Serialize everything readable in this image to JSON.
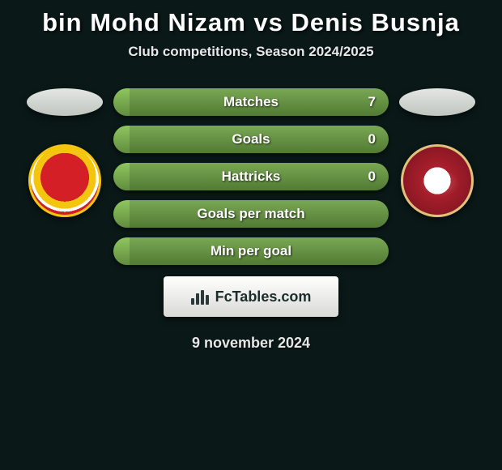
{
  "header": {
    "title": "bin Mohd Nizam vs Denis Busnja",
    "subtitle": "Club competitions, Season 2024/2025"
  },
  "bar_style": {
    "height": 34,
    "radius": 17,
    "bg_gradient": [
      "#7aa854",
      "#517a33"
    ],
    "fill_gradient": [
      "#8fc65f",
      "#618c3e"
    ],
    "label_fontsize": 17,
    "label_color": "#ffffff",
    "shadow": "0 3px 6px rgba(0,0,0,0.5)"
  },
  "bars": [
    {
      "label": "Matches",
      "left": "",
      "right": "7",
      "fill_pct": 6
    },
    {
      "label": "Goals",
      "left": "",
      "right": "0",
      "fill_pct": 6
    },
    {
      "label": "Hattricks",
      "left": "",
      "right": "0",
      "fill_pct": 6
    },
    {
      "label": "Goals per match",
      "left": "",
      "right": "",
      "fill_pct": 6
    },
    {
      "label": "Min per goal",
      "left": "",
      "right": "",
      "fill_pct": 6
    }
  ],
  "crests": {
    "left": {
      "primary": "#d41f26",
      "secondary": "#f4c50f",
      "ring": "#ffffff"
    },
    "right": {
      "primary": "#8a1724",
      "secondary": "#e0c27a",
      "ring": "#ffffff"
    }
  },
  "brand": {
    "text": "FcTables.com",
    "bg_gradient": [
      "#ffffff",
      "#d9dad6"
    ],
    "text_color": "#1c2b2b"
  },
  "date": "9 november 2024",
  "colors": {
    "background": "#0a1818",
    "title": "#ffffff",
    "subtitle": "#e8e8e8",
    "date": "#e6e6e6",
    "oval_gradient": [
      "#e4e7e4",
      "#bfc5bf"
    ]
  },
  "typography": {
    "title_fontsize": 31,
    "subtitle_fontsize": 17,
    "date_fontsize": 18,
    "font_family": "Segoe UI, Arial, sans-serif"
  }
}
